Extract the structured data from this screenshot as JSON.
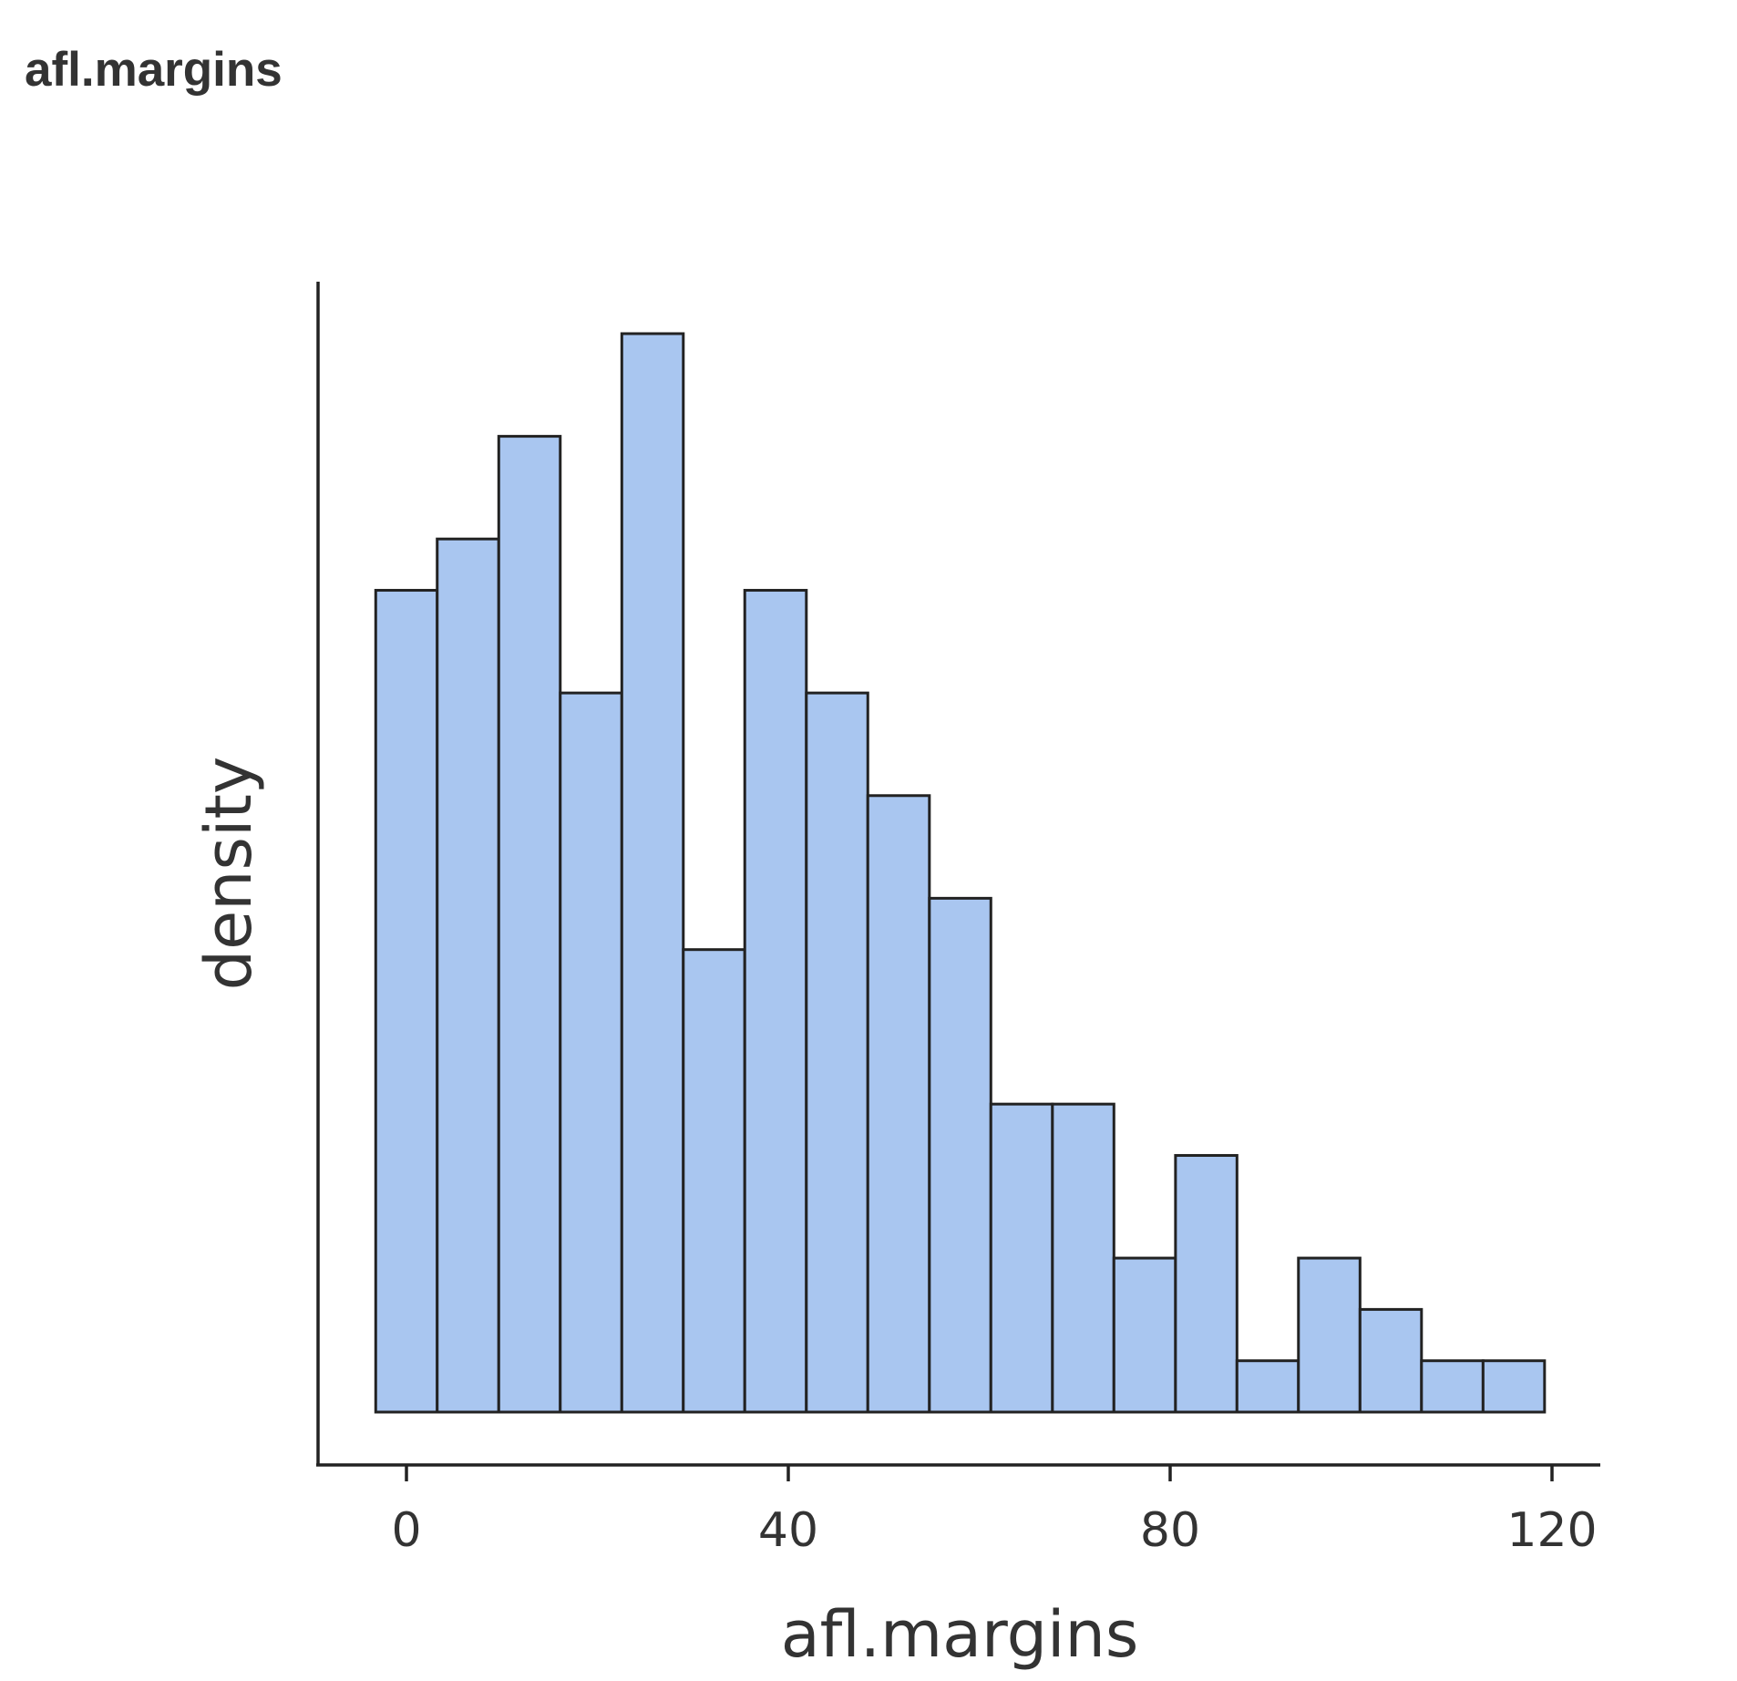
{
  "title": "afl.margins",
  "chart_data": {
    "type": "bar",
    "subtype": "histogram",
    "title": "afl.margins",
    "xlabel": "afl.margins",
    "ylabel": "density",
    "x_ticks": [
      0,
      40,
      80,
      120
    ],
    "xlim": [
      -9.3,
      125.2
    ],
    "y_ticks_shown": false,
    "grid": false,
    "legend": "none",
    "fill_color": "#a9c6f0",
    "edge_color": "#222222",
    "bin_width": 6.444,
    "bins": [
      {
        "x0": -3.22,
        "x1": 3.22,
        "density": 0.01601
      },
      {
        "x0": 3.22,
        "x1": 9.67,
        "density": 0.01701
      },
      {
        "x0": 9.67,
        "x1": 16.11,
        "density": 0.01901
      },
      {
        "x0": 16.11,
        "x1": 22.56,
        "density": 0.01401
      },
      {
        "x0": 22.56,
        "x1": 29.0,
        "density": 0.02101
      },
      {
        "x0": 29.0,
        "x1": 35.44,
        "density": 0.00901
      },
      {
        "x0": 35.44,
        "x1": 41.89,
        "density": 0.01601
      },
      {
        "x0": 41.89,
        "x1": 48.33,
        "density": 0.01401
      },
      {
        "x0": 48.33,
        "x1": 54.78,
        "density": 0.01201
      },
      {
        "x0": 54.78,
        "x1": 61.22,
        "density": 0.01001
      },
      {
        "x0": 61.22,
        "x1": 67.67,
        "density": 0.006
      },
      {
        "x0": 67.67,
        "x1": 74.11,
        "density": 0.006
      },
      {
        "x0": 74.11,
        "x1": 80.56,
        "density": 0.003
      },
      {
        "x0": 80.56,
        "x1": 87.0,
        "density": 0.005
      },
      {
        "x0": 87.0,
        "x1": 93.44,
        "density": 0.001
      },
      {
        "x0": 93.44,
        "x1": 99.89,
        "density": 0.003
      },
      {
        "x0": 99.89,
        "x1": 106.33,
        "density": 0.002
      },
      {
        "x0": 106.33,
        "x1": 112.78,
        "density": 0.001
      },
      {
        "x0": 112.78,
        "x1": 119.22,
        "density": 0.001
      }
    ]
  }
}
